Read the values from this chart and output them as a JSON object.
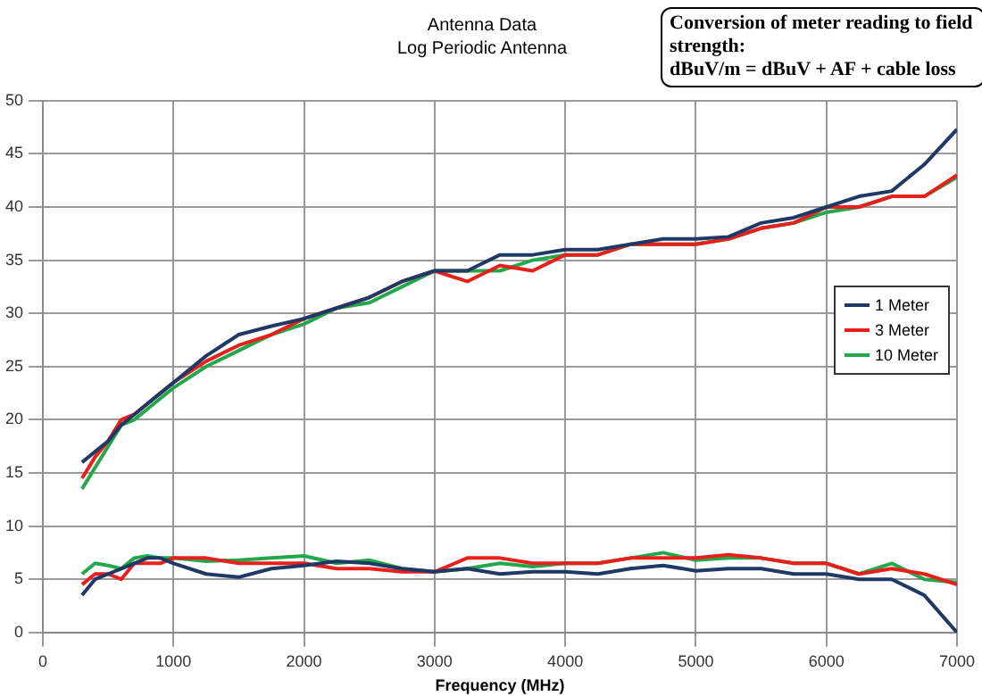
{
  "chart_data": {
    "type": "line",
    "title": "Antenna Data",
    "subtitle": "Log Periodic Antenna",
    "annotations": [
      "Conversion of meter reading to field strength:",
      "dBuV/m = dBuV + AF + cable loss"
    ],
    "xlabel": "Frequency (MHz)",
    "x": [
      300,
      400,
      500,
      600,
      700,
      800,
      900,
      1000,
      1250,
      1500,
      1750,
      2000,
      2250,
      2500,
      2750,
      3000,
      3250,
      3500,
      3750,
      4000,
      4250,
      4500,
      4750,
      5000,
      5250,
      5500,
      5750,
      6000,
      6250,
      6500,
      6750,
      7000
    ],
    "series": [
      {
        "name": "1 Meter",
        "color": "#1f3864",
        "values": [
          16,
          17,
          18,
          19.5,
          20.5,
          21.5,
          22.5,
          23.5,
          26,
          28,
          28.8,
          29.5,
          30.5,
          31.5,
          33,
          34,
          34,
          35.5,
          35.5,
          36,
          36,
          36.5,
          37,
          37,
          37.2,
          38.5,
          39,
          40,
          41,
          41.5,
          44,
          47.3
        ]
      },
      {
        "name": "3 Meter",
        "color": "#e8201c",
        "values": [
          14.5,
          16.5,
          18,
          20,
          20.5,
          21.5,
          22.5,
          23.5,
          25.5,
          27,
          28,
          29.5,
          30.5,
          31.5,
          33,
          34,
          33,
          34.5,
          34,
          35.5,
          35.5,
          36.5,
          36.5,
          36.5,
          37,
          38,
          38.5,
          40,
          40,
          41,
          41,
          43
        ]
      },
      {
        "name": "10 Meter",
        "color": "#22a84a",
        "values": [
          13.5,
          15.5,
          17.5,
          19.5,
          20,
          21,
          22,
          23,
          25,
          26.5,
          28,
          29,
          30.5,
          31,
          32.5,
          34,
          34,
          34,
          35,
          35.5,
          35.5,
          36.5,
          36.5,
          36.5,
          37,
          38,
          38.5,
          39.5,
          40,
          41,
          41,
          42.8
        ]
      },
      {
        "color": "#1f3864",
        "values": [
          3.5,
          5,
          5.5,
          6,
          6.5,
          7,
          7,
          6.5,
          5.5,
          5.2,
          6,
          6.3,
          6.7,
          6.5,
          6,
          5.7,
          6,
          5.5,
          5.7,
          5.7,
          5.5,
          6,
          6.3,
          5.8,
          6,
          6,
          5.5,
          5.5,
          5,
          5,
          3.5,
          0
        ]
      },
      {
        "color": "#e8201c",
        "values": [
          4.5,
          5.5,
          5.5,
          5,
          6.5,
          6.5,
          6.5,
          7,
          7,
          6.5,
          6.5,
          6.5,
          6,
          6,
          5.7,
          5.7,
          7,
          7,
          6.5,
          6.5,
          6.5,
          7,
          7,
          7,
          7.3,
          7,
          6.5,
          6.5,
          5.5,
          6,
          5.5,
          4.5
        ]
      },
      {
        "color": "#22a84a",
        "values": [
          5.5,
          6.5,
          6.3,
          6,
          7,
          7.2,
          7,
          7,
          6.7,
          6.8,
          7,
          7.2,
          6.5,
          6.8,
          6,
          5.7,
          6,
          6.5,
          6.2,
          6.5,
          6.5,
          7,
          7.5,
          6.8,
          7,
          7,
          6.5,
          6.5,
          5.5,
          6.5,
          5,
          4.7
        ]
      }
    ],
    "xlim": [
      0,
      7000
    ],
    "xticks": [
      0,
      1000,
      2000,
      3000,
      4000,
      5000,
      6000,
      7000
    ],
    "ylim": [
      0,
      50
    ],
    "yticks": [
      0,
      5,
      10,
      15,
      20,
      25,
      30,
      35,
      40,
      45,
      50
    ],
    "grid": true,
    "legend": "right",
    "marker": "none",
    "line_style": "solid"
  }
}
